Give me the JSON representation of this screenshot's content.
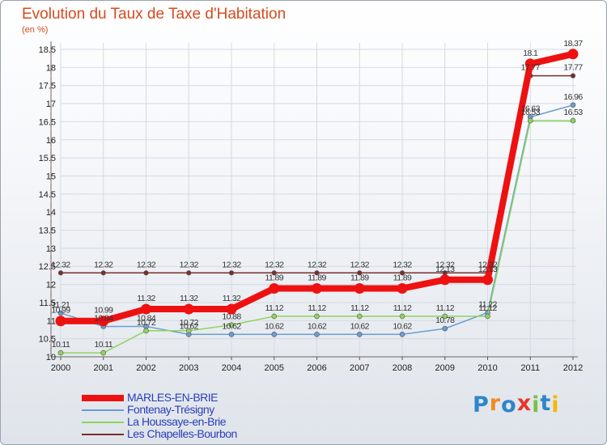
{
  "header": {
    "title": "Evolution du Taux de Taxe d'Habitation",
    "unit": "(en %)"
  },
  "chart_data": {
    "type": "line",
    "title": "Evolution du Taux de Taxe d'Habitation",
    "ylabel": "(en %)",
    "xlabel": "",
    "x": [
      "2000",
      "2001",
      "2002",
      "2003",
      "2004",
      "2005",
      "2006",
      "2007",
      "2008",
      "2009",
      "2010",
      "2011",
      "2012"
    ],
    "ylim": [
      10,
      18.5
    ],
    "yticks": [
      "10",
      "10.5",
      "11",
      "11.5",
      "12",
      "12.5",
      "13",
      "13.5",
      "14",
      "14.5",
      "15",
      "15.5",
      "16",
      "16.5",
      "17",
      "17.5",
      "18",
      "18.5"
    ],
    "series": [
      {
        "name": "Les Chapelles-Bourbon",
        "color": "#7a2e2e",
        "width": 1.5,
        "marker": 2.8,
        "showLabels": true,
        "values": [
          12.32,
          12.32,
          12.32,
          12.32,
          12.32,
          12.32,
          12.32,
          12.32,
          12.32,
          12.32,
          12.32,
          17.77,
          17.77
        ],
        "labels": [
          "12.32",
          "12.32",
          "12.32",
          "12.32",
          "12.32",
          "12.32",
          "12.32",
          "12.32",
          "12.32",
          "12.32",
          "12.32",
          "17.77",
          "17.77"
        ]
      },
      {
        "name": "Fontenay-Trésigny",
        "color": "#6b9dd1",
        "width": 1.5,
        "marker": 3,
        "showLabels": true,
        "values": [
          11.21,
          10.84,
          10.84,
          10.62,
          10.62,
          10.62,
          10.62,
          10.62,
          10.62,
          10.78,
          11.22,
          16.63,
          16.96
        ],
        "labels": [
          "11.21",
          "10.84",
          "10.84",
          "10.62",
          "10.62",
          "10.62",
          "10.62",
          "10.62",
          "10.62",
          "10.78",
          "11.22",
          "16.63",
          "16.96"
        ]
      },
      {
        "name": "La Houssaye-en-Brie",
        "color": "#8fd45e",
        "width": 1.5,
        "marker": 3,
        "showLabels": true,
        "values": [
          10.11,
          10.11,
          10.72,
          10.72,
          10.88,
          11.12,
          11.12,
          11.12,
          11.12,
          11.12,
          11.12,
          16.53,
          16.53
        ],
        "labels": [
          "10.11",
          "10.11",
          "10.72",
          "10.72",
          "10.88",
          "11.12",
          "11.12",
          "11.12",
          "11.12",
          "11.12",
          "11.12",
          "16.53",
          "16.53"
        ]
      },
      {
        "name": "MARLES-EN-BRIE",
        "color": "#ee1111",
        "width": 8,
        "marker": 6.5,
        "showLabels": true,
        "values": [
          10.99,
          10.99,
          11.32,
          11.32,
          11.32,
          11.89,
          11.89,
          11.89,
          11.89,
          12.13,
          12.13,
          18.1,
          18.37
        ],
        "labels": [
          "10.99",
          "10.99",
          "11.32",
          "11.32",
          "11.32",
          "11.89",
          "11.89",
          "11.89",
          "11.89",
          "12.13",
          "12.13",
          "18.1",
          "18.37"
        ]
      }
    ]
  },
  "legend": [
    {
      "label": "MARLES-EN-BRIE",
      "color": "#ee1111",
      "thickness": 8
    },
    {
      "label": "Fontenay-Trésigny",
      "color": "#6b9dd1",
      "thickness": 2
    },
    {
      "label": "La Houssaye-en-Brie",
      "color": "#8fd45e",
      "thickness": 2
    },
    {
      "label": "Les Chapelles-Bourbon",
      "color": "#7a2e2e",
      "thickness": 2
    }
  ],
  "brand": {
    "letters": [
      "P",
      "r",
      "o",
      "x",
      "i",
      "t",
      "i"
    ],
    "colors": [
      "#2e86c9",
      "#f08c1e",
      "#2e86c9",
      "#e8352a",
      "#7ac143",
      "#2e86c9",
      "#f5b800"
    ]
  }
}
